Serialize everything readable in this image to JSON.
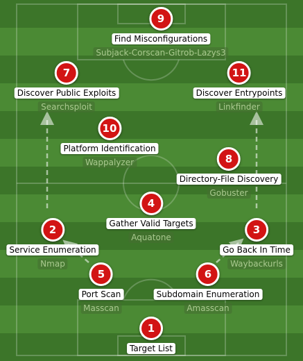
{
  "nodes": [
    {
      "num": "9",
      "label": "Find Misconfigurations",
      "tool": "Subjack-Corscan-Gitrob-Lazys3"
    },
    {
      "num": "7",
      "label": "Discover Public Exploits",
      "tool": "Searchsploit"
    },
    {
      "num": "11",
      "label": "Discover Entrypoints",
      "tool": "Linkfinder"
    },
    {
      "num": "10",
      "label": "Platform Identification",
      "tool": "Wappalyzer"
    },
    {
      "num": "8",
      "label": "Directory-File Discovery",
      "tool": "Gobuster"
    },
    {
      "num": "4",
      "label": "Gather Valid Targets",
      "tool": "Aquatone"
    },
    {
      "num": "2",
      "label": "Service Enumeration",
      "tool": "Nmap"
    },
    {
      "num": "3",
      "label": "Go Back In Time",
      "tool": "Waybackurls"
    },
    {
      "num": "5",
      "label": "Port Scan",
      "tool": "Masscan"
    },
    {
      "num": "6",
      "label": "Subdomain Enumeration",
      "tool": "Amasscan"
    },
    {
      "num": "1",
      "label": "Target List",
      "tool": ""
    }
  ],
  "colors": {
    "badge": "#d21414",
    "pitch_dark": "#3c7529",
    "pitch_light": "#4b8a34"
  }
}
